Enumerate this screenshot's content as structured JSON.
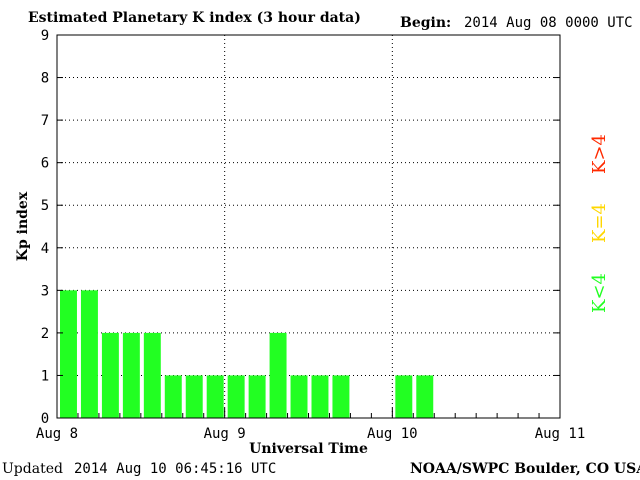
{
  "header": {
    "title": "Estimated Planetary K index (3 hour data)",
    "begin_label": "Begin:",
    "begin_value": "2014 Aug 08 0000 UTC"
  },
  "footer": {
    "updated_label": "Updated",
    "updated_value": "2014 Aug 10 06:45:16 UTC",
    "credit": "NOAA/SWPC Boulder, CO USA"
  },
  "legend": {
    "high": {
      "label": "K>4",
      "color": "#ff2a00"
    },
    "mid": {
      "label": "K=4",
      "color": "#ffd700"
    },
    "low": {
      "label": "K<4",
      "color": "#22ff22"
    }
  },
  "chart_data": {
    "type": "bar",
    "title": "Estimated Planetary K index (3 hour data)",
    "xlabel": "Universal Time",
    "ylabel": "Kp index",
    "ylim": [
      0,
      9
    ],
    "yticks": [
      0,
      1,
      2,
      3,
      4,
      5,
      6,
      7,
      8,
      9
    ],
    "xlim": [
      "2014-08-08 00:00",
      "2014-08-11 00:00"
    ],
    "xtick_labels": [
      "Aug 8",
      "Aug 9",
      "Aug 10",
      "Aug 11"
    ],
    "grid": true,
    "bar_color": "#22ff22",
    "series": [
      {
        "interval_start_utc": [
          "2014-08-08 00:00",
          "2014-08-08 03:00",
          "2014-08-08 06:00",
          "2014-08-08 09:00",
          "2014-08-08 12:00",
          "2014-08-08 15:00",
          "2014-08-08 18:00",
          "2014-08-08 21:00",
          "2014-08-09 00:00",
          "2014-08-09 03:00",
          "2014-08-09 06:00",
          "2014-08-09 09:00",
          "2014-08-09 12:00",
          "2014-08-09 15:00",
          "2014-08-09 18:00",
          "2014-08-09 21:00",
          "2014-08-10 00:00",
          "2014-08-10 03:00"
        ],
        "values": [
          3,
          3,
          2,
          2,
          2,
          1,
          1,
          1,
          1,
          1,
          2,
          1,
          1,
          1,
          0,
          0,
          1,
          1
        ]
      }
    ]
  }
}
